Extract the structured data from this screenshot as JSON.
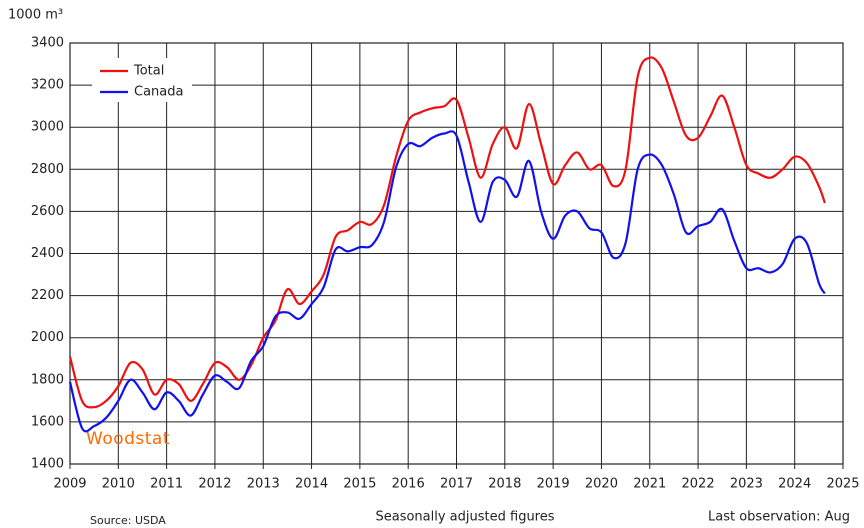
{
  "chart_data": {
    "type": "line",
    "y_label": "1000 m³",
    "x": [
      2009,
      2009.25,
      2009.5,
      2009.75,
      2010,
      2010.25,
      2010.5,
      2010.75,
      2011,
      2011.25,
      2011.5,
      2011.75,
      2012,
      2012.25,
      2012.5,
      2012.75,
      2013,
      2013.25,
      2013.5,
      2013.75,
      2014,
      2014.25,
      2014.5,
      2014.75,
      2015,
      2015.25,
      2015.5,
      2015.75,
      2016,
      2016.25,
      2016.5,
      2016.75,
      2017,
      2017.25,
      2017.5,
      2017.75,
      2018,
      2018.25,
      2018.5,
      2018.75,
      2019,
      2019.25,
      2019.5,
      2019.75,
      2020,
      2020.25,
      2020.5,
      2020.75,
      2021,
      2021.25,
      2021.5,
      2021.75,
      2022,
      2022.25,
      2022.5,
      2022.75,
      2023,
      2023.25,
      2023.5,
      2023.75,
      2024,
      2024.25,
      2024.5,
      2024.625
    ],
    "series": [
      {
        "name": "Total",
        "color": "#ee1111",
        "values": [
          1910,
          1700,
          1670,
          1700,
          1770,
          1880,
          1850,
          1730,
          1800,
          1780,
          1700,
          1780,
          1880,
          1860,
          1800,
          1870,
          2000,
          2080,
          2230,
          2160,
          2220,
          2300,
          2480,
          2510,
          2550,
          2540,
          2630,
          2860,
          3030,
          3070,
          3090,
          3100,
          3130,
          2950,
          2760,
          2920,
          3000,
          2900,
          3110,
          2920,
          2730,
          2820,
          2880,
          2800,
          2820,
          2720,
          2800,
          3240,
          3330,
          3280,
          3120,
          2960,
          2950,
          3050,
          3150,
          3000,
          2820,
          2780,
          2760,
          2800,
          2860,
          2830,
          2720,
          2640
        ]
      },
      {
        "name": "Canada",
        "color": "#1111ee",
        "values": [
          1790,
          1570,
          1580,
          1620,
          1700,
          1800,
          1740,
          1660,
          1740,
          1700,
          1630,
          1730,
          1820,
          1790,
          1760,
          1890,
          1960,
          2100,
          2120,
          2090,
          2160,
          2240,
          2420,
          2410,
          2430,
          2440,
          2550,
          2810,
          2920,
          2910,
          2950,
          2970,
          2960,
          2740,
          2550,
          2740,
          2750,
          2670,
          2840,
          2600,
          2470,
          2580,
          2600,
          2520,
          2500,
          2380,
          2450,
          2800,
          2870,
          2820,
          2680,
          2500,
          2530,
          2550,
          2610,
          2460,
          2330,
          2330,
          2310,
          2350,
          2470,
          2450,
          2260,
          2210
        ]
      }
    ],
    "xlim": [
      2009,
      2025
    ],
    "xticks": [
      2009,
      2010,
      2011,
      2012,
      2013,
      2014,
      2015,
      2016,
      2017,
      2018,
      2019,
      2020,
      2021,
      2022,
      2023,
      2024,
      2025
    ],
    "ylim": [
      1400,
      3400
    ],
    "yticks": [
      1400,
      1600,
      1800,
      2000,
      2200,
      2400,
      2600,
      2800,
      3000,
      3200,
      3400
    ],
    "grid": true,
    "legend": "top-left",
    "logo": "Woodstat",
    "source": "Source: USDA",
    "note": "Seasonally adjusted figures",
    "last_observation": "Last observation: Aug"
  }
}
